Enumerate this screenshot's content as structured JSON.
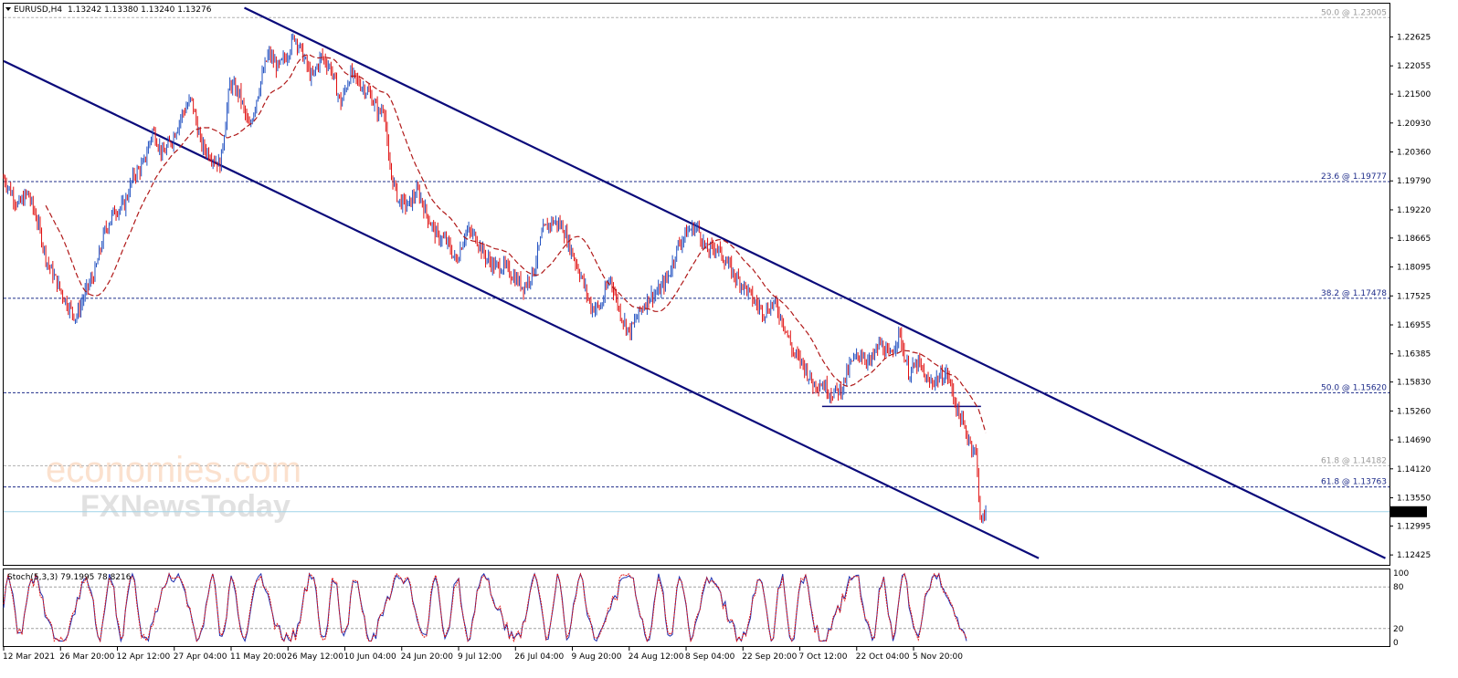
{
  "header": {
    "symbol": "EURUSD,H4",
    "ohlc": "1.13242 1.13380 1.13240 1.13276"
  },
  "watermark": {
    "line1": "economies.com",
    "line2": "FXNewsToday"
  },
  "chart_data": {
    "type": "line",
    "title": "",
    "xlabel": "",
    "ylabel": "",
    "ylim": [
      1.1223,
      1.2328
    ],
    "price_ticks": [
      "1.22625",
      "1.22055",
      "1.21500",
      "1.20930",
      "1.20360",
      "1.19790",
      "1.19220",
      "1.18665",
      "1.18095",
      "1.17525",
      "1.16955",
      "1.16385",
      "1.15830",
      "1.15260",
      "1.14690",
      "1.14120",
      "1.13550",
      "1.12995",
      "1.12425"
    ],
    "time_ticks": [
      "12 Mar 2021",
      "26 Mar 20:00",
      "12 Apr 12:00",
      "27 Apr 04:00",
      "11 May 20:00",
      "26 May 12:00",
      "10 Jun 04:00",
      "24 Jun 20:00",
      "9 Jul 12:00",
      "26 Jul 04:00",
      "9 Aug 20:00",
      "24 Aug 12:00",
      "8 Sep 04:00",
      "22 Sep 20:00",
      "7 Oct 12:00",
      "22 Oct 04:00",
      "5 Nov 20:00"
    ],
    "current_price": "1.13276",
    "fib_levels": [
      {
        "label": "50.0 @ 1.23005",
        "value": 1.23005,
        "style": "faint"
      },
      {
        "label": "23.6 @ 1.19777",
        "value": 1.19777,
        "style": "main"
      },
      {
        "label": "38.2 @ 1.17478",
        "value": 1.17478,
        "style": "main"
      },
      {
        "label": "50.0 @ 1.15620",
        "value": 1.1562,
        "style": "main"
      },
      {
        "label": "61.8 @ 1.14182",
        "value": 1.14182,
        "style": "faint"
      },
      {
        "label": "61.8 @ 1.13763",
        "value": 1.13763,
        "style": "main"
      }
    ],
    "channel_lines": [
      {
        "name": "upper",
        "from": {
          "t": 0.25,
          "price": 1.232
        },
        "to": {
          "t": 1.435,
          "price": 1.1236
        }
      },
      {
        "name": "lower",
        "from": {
          "t": 0.0,
          "price": 1.2215
        },
        "to": {
          "t": 1.075,
          "price": 1.1236
        }
      }
    ],
    "support_line": {
      "from_t": 0.85,
      "to_t": 1.015,
      "price": 1.1535
    },
    "series": [
      {
        "points": [
          [
            0.0,
            1.1985
          ],
          [
            0.015,
            1.193
          ],
          [
            0.025,
            1.1955
          ],
          [
            0.035,
            1.19
          ],
          [
            0.045,
            1.182
          ],
          [
            0.055,
            1.178
          ],
          [
            0.065,
            1.174
          ],
          [
            0.075,
            1.171
          ],
          [
            0.085,
            1.176
          ],
          [
            0.095,
            1.18
          ],
          [
            0.105,
            1.188
          ],
          [
            0.115,
            1.192
          ],
          [
            0.125,
            1.193
          ],
          [
            0.135,
            1.199
          ],
          [
            0.145,
            1.201
          ],
          [
            0.155,
            1.208
          ],
          [
            0.165,
            1.203
          ],
          [
            0.175,
            1.206
          ],
          [
            0.185,
            1.211
          ],
          [
            0.195,
            1.214
          ],
          [
            0.205,
            1.205
          ],
          [
            0.215,
            1.203
          ],
          [
            0.225,
            1.201
          ],
          [
            0.235,
            1.217
          ],
          [
            0.245,
            1.215
          ],
          [
            0.255,
            1.208
          ],
          [
            0.265,
            1.216
          ],
          [
            0.275,
            1.223
          ],
          [
            0.285,
            1.22
          ],
          [
            0.295,
            1.223
          ],
          [
            0.302,
            1.2265
          ],
          [
            0.31,
            1.223
          ],
          [
            0.32,
            1.218
          ],
          [
            0.33,
            1.2225
          ],
          [
            0.34,
            1.22
          ],
          [
            0.35,
            1.213
          ],
          [
            0.36,
            1.219
          ],
          [
            0.37,
            1.217
          ],
          [
            0.38,
            1.215
          ],
          [
            0.39,
            1.211
          ],
          [
            0.395,
            1.213
          ],
          [
            0.4,
            1.201
          ],
          [
            0.41,
            1.194
          ],
          [
            0.42,
            1.193
          ],
          [
            0.43,
            1.196
          ],
          [
            0.44,
            1.191
          ],
          [
            0.45,
            1.187
          ],
          [
            0.46,
            1.186
          ],
          [
            0.47,
            1.182
          ],
          [
            0.48,
            1.188
          ],
          [
            0.49,
            1.187
          ],
          [
            0.5,
            1.183
          ],
          [
            0.51,
            1.181
          ],
          [
            0.52,
            1.181
          ],
          [
            0.53,
            1.179
          ],
          [
            0.54,
            1.177
          ],
          [
            0.55,
            1.18
          ],
          [
            0.56,
            1.188
          ],
          [
            0.57,
            1.19
          ],
          [
            0.58,
            1.189
          ],
          [
            0.59,
            1.184
          ],
          [
            0.6,
            1.179
          ],
          [
            0.61,
            1.173
          ],
          [
            0.62,
            1.173
          ],
          [
            0.63,
            1.179
          ],
          [
            0.64,
            1.172
          ],
          [
            0.65,
            1.168
          ],
          [
            0.66,
            1.172
          ],
          [
            0.67,
            1.175
          ],
          [
            0.68,
            1.176
          ],
          [
            0.69,
            1.179
          ],
          [
            0.7,
            1.185
          ],
          [
            0.71,
            1.188
          ],
          [
            0.72,
            1.189
          ],
          [
            0.73,
            1.184
          ],
          [
            0.74,
            1.185
          ],
          [
            0.75,
            1.182
          ],
          [
            0.76,
            1.179
          ],
          [
            0.77,
            1.177
          ],
          [
            0.78,
            1.174
          ],
          [
            0.79,
            1.172
          ],
          [
            0.8,
            1.174
          ],
          [
            0.81,
            1.17
          ],
          [
            0.82,
            1.164
          ],
          [
            0.83,
            1.162
          ],
          [
            0.84,
            1.158
          ],
          [
            0.85,
            1.158
          ],
          [
            0.86,
            1.156
          ],
          [
            0.87,
            1.157
          ],
          [
            0.88,
            1.162
          ],
          [
            0.89,
            1.164
          ],
          [
            0.9,
            1.162
          ],
          [
            0.91,
            1.166
          ],
          [
            0.92,
            1.163
          ],
          [
            0.93,
            1.168
          ],
          [
            0.94,
            1.16
          ],
          [
            0.95,
            1.162
          ],
          [
            0.96,
            1.158
          ],
          [
            0.97,
            1.159
          ],
          [
            0.98,
            1.16
          ],
          [
            0.99,
            1.153
          ],
          [
            1.0,
            1.148
          ],
          [
            1.01,
            1.144
          ],
          [
            1.015,
            1.13
          ],
          [
            1.02,
            1.133
          ]
        ]
      }
    ]
  },
  "stochastic": {
    "label": "Stoch(5,3,3) 79.1995 78.8216",
    "ticks": [
      "100",
      "80",
      "20",
      "0"
    ],
    "levels": [
      80,
      20
    ]
  }
}
